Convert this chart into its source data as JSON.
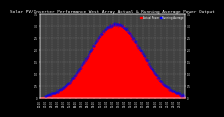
{
  "title": "Solar PV/Inverter Performance West Array Actual & Running Average Power Output",
  "title_fontsize": 3.2,
  "legend_entries": [
    "Actual Power",
    "Running Average"
  ],
  "legend_colors": [
    "#ff0000",
    "#0000ff"
  ],
  "background_color": "#000000",
  "plot_bg_color": "#404040",
  "grid_color": "#888888",
  "fill_color": "#ff0000",
  "avg_color": "#0000ff",
  "ylim": [
    0,
    3.5
  ],
  "n_points": 288,
  "peak_idx": 150,
  "sigma": 52,
  "peak_val": 3.1
}
